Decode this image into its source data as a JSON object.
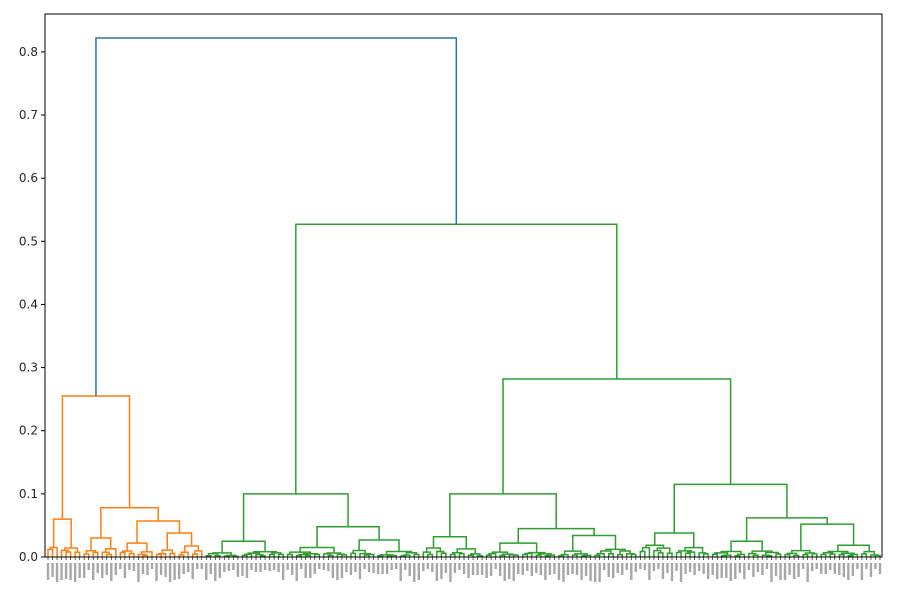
{
  "chart_data": {
    "type": "dendrogram",
    "title": "",
    "xlabel": "",
    "ylabel": "",
    "ylim": [
      0,
      0.86
    ],
    "grid": false,
    "y_ticks": [
      0.0,
      0.1,
      0.2,
      0.3,
      0.4,
      0.5,
      0.6,
      0.7,
      0.8
    ],
    "y_tick_labels": [
      "0.0",
      "0.1",
      "0.2",
      "0.3",
      "0.4",
      "0.5",
      "0.6",
      "0.7",
      "0.8"
    ],
    "colors": {
      "above_threshold": "#1f77b4",
      "cluster_1": "#ff7f0e",
      "cluster_2": "#2ca02c",
      "axis": "#000000"
    },
    "leaf_count": 210,
    "top_merges": [
      {
        "height": 0.822,
        "color": "above_threshold",
        "description": "root: cluster_1 vs cluster_2"
      },
      {
        "height": 0.527,
        "color": "cluster_2"
      },
      {
        "height": 0.282,
        "color": "cluster_2"
      },
      {
        "height": 0.255,
        "color": "cluster_1"
      },
      {
        "height": 0.115,
        "color": "cluster_2"
      },
      {
        "height": 0.1,
        "color": "cluster_2"
      },
      {
        "height": 0.1,
        "color": "cluster_2"
      }
    ]
  }
}
